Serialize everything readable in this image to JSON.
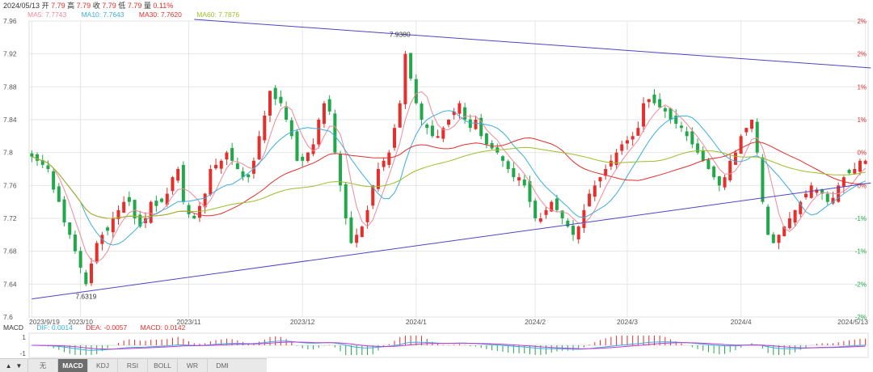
{
  "header": {
    "date": "2024/05/13",
    "open_label": "开",
    "open": "7.79",
    "high_label": "高",
    "high": "7.79",
    "close_label": "收",
    "close": "7.79",
    "low_label": "低",
    "low": "7.79",
    "change_label": "量",
    "change": "0.11%"
  },
  "ma_legend": [
    {
      "label": "MA5: 7.7743",
      "color": "#f08a9a"
    },
    {
      "label": "MA10: 7.7643",
      "color": "#3aaee0"
    },
    {
      "label": "MA30: 7.7620",
      "color": "#e3302d"
    },
    {
      "label": "MA60: 7.7876",
      "color": "#9cbf2a"
    }
  ],
  "macd_legend": {
    "name": "MACD",
    "items": [
      {
        "label": "DIF: 0.0014",
        "color": "#3aaee0"
      },
      {
        "label": "DEA: -0.0057",
        "color": "#e3302d"
      },
      {
        "label": "MACD: 0.0142",
        "color": "#e3302d"
      }
    ]
  },
  "tabs": {
    "up": "▲",
    "down": "▼",
    "items": [
      "无",
      "MACD",
      "KDJ",
      "RSI",
      "BOLL",
      "WR",
      "DMI"
    ],
    "active": "MACD"
  },
  "colors": {
    "up": "#e3302d",
    "down": "#22a84a",
    "trendline": "#4b45c8",
    "grid": "#e6e6e6"
  },
  "chart_data": {
    "type": "candlestick",
    "y_ticks": [
      "7.96",
      "7.92",
      "7.88",
      "7.84",
      "7.8",
      "7.76",
      "7.72",
      "7.68",
      "7.64",
      "7.6"
    ],
    "ylim": [
      7.6,
      7.96
    ],
    "pct_ticks": [
      {
        "value": 7.96,
        "label": "2%"
      },
      {
        "value": 7.92,
        "label": "2%"
      },
      {
        "value": 7.88,
        "label": "1%"
      },
      {
        "value": 7.84,
        "label": "1%"
      },
      {
        "value": 7.8,
        "label": "0%"
      },
      {
        "value": 7.76,
        "label": "0%"
      },
      {
        "value": 7.72,
        "label": "-1%"
      },
      {
        "value": 7.68,
        "label": "-1%"
      },
      {
        "value": 7.64,
        "label": "-2%"
      },
      {
        "value": 7.6,
        "label": "-2%"
      }
    ],
    "x_ticks": [
      {
        "index": 0,
        "label": "2023/9/19"
      },
      {
        "index": 9,
        "label": "2023/10"
      },
      {
        "index": 29,
        "label": "2023/11"
      },
      {
        "index": 50,
        "label": "2023/12"
      },
      {
        "index": 71,
        "label": "2024/1"
      },
      {
        "index": 93,
        "label": "2024/2"
      },
      {
        "index": 110,
        "label": "2024/3"
      },
      {
        "index": 131,
        "label": "2024/4"
      },
      {
        "index": 154,
        "label": "2024/5/13"
      }
    ],
    "annotations": [
      {
        "index": 68,
        "value": 7.938,
        "label": "7.9380",
        "position": "above"
      },
      {
        "index": 10,
        "value": 7.6319,
        "label": "7.6319",
        "position": "below"
      }
    ],
    "trendlines": [
      {
        "from": {
          "index": 30,
          "value": 7.962
        },
        "to": {
          "index": 155,
          "value": 7.903
        }
      },
      {
        "from": {
          "index": 0,
          "value": 7.622
        },
        "to": {
          "index": 155,
          "value": 7.763
        }
      }
    ],
    "closes": [
      7.795,
      7.79,
      7.785,
      7.78,
      7.755,
      7.74,
      7.715,
      7.7,
      7.68,
      7.66,
      7.64,
      7.665,
      7.69,
      7.7,
      7.705,
      7.72,
      7.73,
      7.74,
      7.74,
      7.72,
      7.71,
      7.72,
      7.74,
      7.735,
      7.74,
      7.75,
      7.77,
      7.78,
      7.74,
      7.725,
      7.72,
      7.735,
      7.75,
      7.78,
      7.785,
      7.79,
      7.8,
      7.79,
      7.78,
      7.77,
      7.77,
      7.79,
      7.82,
      7.845,
      7.875,
      7.865,
      7.86,
      7.84,
      7.82,
      7.79,
      7.79,
      7.8,
      7.81,
      7.84,
      7.86,
      7.85,
      7.8,
      7.76,
      7.72,
      7.69,
      7.7,
      7.71,
      7.73,
      7.76,
      7.78,
      7.79,
      7.8,
      7.83,
      7.86,
      7.92,
      7.89,
      7.86,
      7.84,
      7.83,
      7.82,
      7.82,
      7.83,
      7.84,
      7.85,
      7.86,
      7.84,
      7.83,
      7.84,
      7.82,
      7.81,
      7.805,
      7.8,
      7.79,
      7.78,
      7.77,
      7.77,
      7.76,
      7.74,
      7.72,
      7.72,
      7.73,
      7.74,
      7.73,
      7.72,
      7.71,
      7.7,
      7.71,
      7.73,
      7.75,
      7.76,
      7.77,
      7.78,
      7.79,
      7.8,
      7.81,
      7.815,
      7.82,
      7.83,
      7.86,
      7.865,
      7.86,
      7.855,
      7.85,
      7.84,
      7.835,
      7.83,
      7.82,
      7.81,
      7.8,
      7.79,
      7.78,
      7.77,
      7.76,
      7.77,
      7.79,
      7.8,
      7.82,
      7.83,
      7.84,
      7.8,
      7.74,
      7.7,
      7.69,
      7.7,
      7.71,
      7.72,
      7.73,
      7.74,
      7.75,
      7.76,
      7.755,
      7.75,
      7.74,
      7.745,
      7.76,
      7.77,
      7.775,
      7.78,
      7.79,
      7.79
    ]
  }
}
